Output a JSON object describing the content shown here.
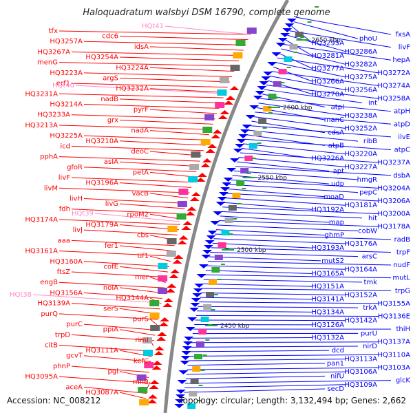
{
  "title": "Haloquadratum walsbyi DSM 16790, complete genome",
  "footer": {
    "accession": "Accession: NC_008212",
    "topology": "Topology: circular; Length: 3,132,494 bp; Genes: 2,662"
  },
  "colors": {
    "forward": "#ff0000",
    "reverse": "#0000ff",
    "rna": "#ff88cc",
    "backbone": "#888888"
  },
  "tick_labels": [
    "2650 kbp",
    "2600 kbp",
    "2550 kbp",
    "2500 kbp",
    "2450 kbp"
  ],
  "left_labels": [
    "tfx",
    "cdc6",
    "HQ3257A",
    "idsA",
    "HQ3267A",
    "HQ3254A",
    "menG",
    "HQ3224A",
    "HQ3223A",
    "argS",
    "erf1",
    "HQ3232A",
    "HQ3231A",
    "nadB",
    "HQ3214A",
    "pyrF",
    "HQ3233A",
    "grx",
    "HQ3213A",
    "nadA",
    "HQ3225A",
    "HQ3210A",
    "icd",
    "deoC",
    "pphA",
    "asIA",
    "gfoR",
    "petA",
    "livF",
    "HQ3196A",
    "livM",
    "vacB",
    "livH",
    "livG",
    "fdh",
    "rpoM2",
    "HQ3174A",
    "HQ3179A",
    "livJ",
    "cbs",
    "aaa",
    "fer1",
    "HQ3161A",
    "tif1",
    "HQ3160A",
    "cofE",
    "ftsZ",
    "mer",
    "engB",
    "nolA",
    "HQ3156A",
    "HQ3144A",
    "HQ3139A",
    "serS",
    "purQ",
    "purS",
    "purC",
    "ppiA",
    "trpD",
    "rimI",
    "citB",
    "HQ3111A",
    "gcvT",
    "kefC",
    "phnP",
    "pgl",
    "HQ3095A",
    "rnhB",
    "aceA",
    "HQ3087A"
  ],
  "left_rna_labels": [
    "HQt41",
    "HQt40",
    "HQt39",
    "HQt38"
  ],
  "right_labels": [
    "fxsA",
    "phoU",
    "HQ3295A",
    "livF",
    "HQ3286A",
    "HQ3281A",
    "hepA",
    "HQ3282A",
    "HQ3277A",
    "HQ3272A",
    "HQ3275A",
    "HQ3266A",
    "HQ3274A",
    "HQ3256A",
    "HQ3270A",
    "HQ3258A",
    "int",
    "atpI",
    "atpH",
    "HQ3238A",
    "manC",
    "atpD",
    "HQ3252A",
    "cdsA",
    "ilvE",
    "ribB",
    "atpB",
    "atpC",
    "HQ3220A",
    "HQ3226A",
    "HQ3237A",
    "HQ3227A",
    "apt",
    "dsbA",
    "hmgR",
    "udp",
    "HQ3204A",
    "pepC",
    "moaD",
    "HQ3206A",
    "HQ3181A",
    "HQ3192A",
    "HQ3200A",
    "hit",
    "map",
    "HQ3178A",
    "cobW",
    "ghmP",
    "radB",
    "HQ3176A",
    "HQ3193A",
    "trpF",
    "arsC",
    "mutS2",
    "nudF",
    "HQ3164A",
    "HQ3165A",
    "mutL",
    "tmk",
    "HQ3151A",
    "trpG",
    "HQ3152A",
    "HQ3141A",
    "HQ3155A",
    "trkA",
    "HQ3134A",
    "HQ3136E",
    "HQ3142A",
    "HQ3126A",
    "thiH",
    "purU",
    "HQ3132A",
    "HQ3137A",
    "nirD",
    "dcd",
    "HQ3110A",
    "HQ3113A",
    "pan1",
    "HQ3103A",
    "HQ3106A",
    "nifU",
    "glcK",
    "HQ3109A",
    "secD"
  ]
}
